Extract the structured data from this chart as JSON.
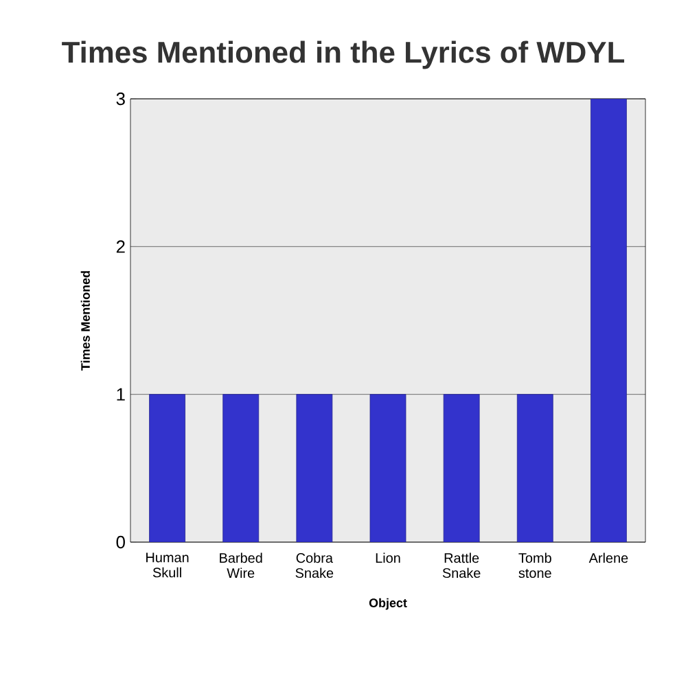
{
  "chart_data": {
    "type": "bar",
    "title": "Times Mentioned in the Lyrics of WDYL",
    "xlabel": "Object",
    "ylabel": "Times Mentioned",
    "categories": [
      "Human Skull",
      "Barbed Wire",
      "Cobra Snake",
      "Lion",
      "Rattle Snake",
      "Tomb stone",
      "Arlene"
    ],
    "values": [
      1,
      1,
      1,
      1,
      1,
      1,
      3
    ],
    "color": "#3333cc",
    "ylim": [
      0,
      3
    ],
    "yticks": [
      0,
      1,
      2,
      3
    ],
    "grid": "y"
  }
}
